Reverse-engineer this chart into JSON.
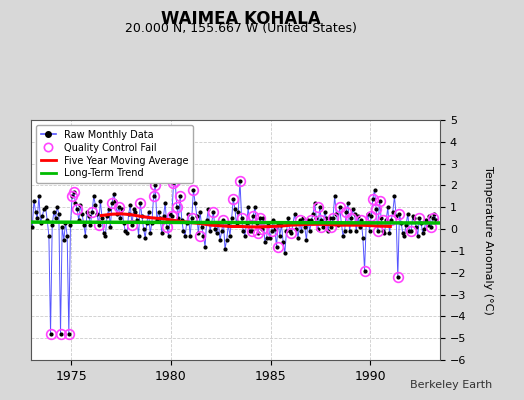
{
  "title": "WAIMEA KOHALA",
  "subtitle": "20.000 N, 155.667 W (United States)",
  "ylabel": "Temperature Anomaly (°C)",
  "credit": "Berkeley Earth",
  "ylim": [
    -6,
    5
  ],
  "xlim": [
    1973.0,
    1993.5
  ],
  "yticks": [
    -6,
    -5,
    -4,
    -3,
    -2,
    -1,
    0,
    1,
    2,
    3,
    4,
    5
  ],
  "xticks": [
    1975,
    1980,
    1985,
    1990
  ],
  "fig_bg_color": "#d8d8d8",
  "plot_bg_color": "#ffffff",
  "grid_color": "#cccccc",
  "raw_color": "#5555ff",
  "dot_color": "#000000",
  "qc_color": "#ff44ff",
  "ma_color": "#ff0000",
  "trend_color": "#00bb00",
  "raw_lw": 0.7,
  "ma_lw": 2.2,
  "trend_lw": 2.5,
  "raw_data_x": [
    1973.042,
    1973.125,
    1973.208,
    1973.292,
    1973.375,
    1973.458,
    1973.542,
    1973.625,
    1973.708,
    1973.792,
    1973.875,
    1973.958,
    1974.042,
    1974.125,
    1974.208,
    1974.292,
    1974.375,
    1974.458,
    1974.542,
    1974.625,
    1974.708,
    1974.792,
    1974.875,
    1974.958,
    1975.042,
    1975.125,
    1975.208,
    1975.292,
    1975.375,
    1975.458,
    1975.542,
    1975.625,
    1975.708,
    1975.792,
    1975.875,
    1975.958,
    1976.042,
    1976.125,
    1976.208,
    1976.292,
    1976.375,
    1976.458,
    1976.542,
    1976.625,
    1976.708,
    1976.792,
    1976.875,
    1976.958,
    1977.042,
    1977.125,
    1977.208,
    1977.292,
    1977.375,
    1977.458,
    1977.542,
    1977.625,
    1977.708,
    1977.792,
    1977.875,
    1977.958,
    1978.042,
    1978.125,
    1978.208,
    1978.292,
    1978.375,
    1978.458,
    1978.542,
    1978.625,
    1978.708,
    1978.792,
    1978.875,
    1978.958,
    1979.042,
    1979.125,
    1979.208,
    1979.292,
    1979.375,
    1979.458,
    1979.542,
    1979.625,
    1979.708,
    1979.792,
    1979.875,
    1979.958,
    1980.042,
    1980.125,
    1980.208,
    1980.292,
    1980.375,
    1980.458,
    1980.542,
    1980.625,
    1980.708,
    1980.792,
    1980.875,
    1980.958,
    1981.042,
    1981.125,
    1981.208,
    1981.292,
    1981.375,
    1981.458,
    1981.542,
    1981.625,
    1981.708,
    1981.792,
    1981.875,
    1981.958,
    1982.042,
    1982.125,
    1982.208,
    1982.292,
    1982.375,
    1982.458,
    1982.542,
    1982.625,
    1982.708,
    1982.792,
    1982.875,
    1982.958,
    1983.042,
    1983.125,
    1983.208,
    1983.292,
    1983.375,
    1983.458,
    1983.542,
    1983.625,
    1983.708,
    1983.792,
    1983.875,
    1983.958,
    1984.042,
    1984.125,
    1984.208,
    1984.292,
    1984.375,
    1984.458,
    1984.542,
    1984.625,
    1984.708,
    1984.792,
    1984.875,
    1984.958,
    1985.042,
    1985.125,
    1985.208,
    1985.292,
    1985.375,
    1985.458,
    1985.542,
    1985.625,
    1985.708,
    1985.792,
    1985.875,
    1985.958,
    1986.042,
    1986.125,
    1986.208,
    1986.292,
    1986.375,
    1986.458,
    1986.542,
    1986.625,
    1986.708,
    1986.792,
    1986.875,
    1986.958,
    1987.042,
    1987.125,
    1987.208,
    1987.292,
    1987.375,
    1987.458,
    1987.542,
    1987.625,
    1987.708,
    1987.792,
    1987.875,
    1987.958,
    1988.042,
    1988.125,
    1988.208,
    1988.292,
    1988.375,
    1988.458,
    1988.542,
    1988.625,
    1988.708,
    1988.792,
    1988.875,
    1988.958,
    1989.042,
    1989.125,
    1989.208,
    1989.292,
    1989.375,
    1989.458,
    1989.542,
    1989.625,
    1989.708,
    1989.792,
    1989.875,
    1989.958,
    1990.042,
    1990.125,
    1990.208,
    1990.292,
    1990.375,
    1990.458,
    1990.542,
    1990.625,
    1990.708,
    1990.792,
    1990.875,
    1990.958,
    1991.042,
    1991.125,
    1991.208,
    1991.292,
    1991.375,
    1991.458,
    1991.542,
    1991.625,
    1991.708,
    1991.792,
    1991.875,
    1991.958,
    1992.042,
    1992.125,
    1992.208,
    1992.292,
    1992.375,
    1992.458,
    1992.542,
    1992.625,
    1992.708,
    1992.792,
    1992.875,
    1992.958,
    1993.042,
    1993.125,
    1993.208,
    1993.292
  ],
  "raw_data_y": [
    0.1,
    1.3,
    0.8,
    0.5,
    1.5,
    0.3,
    0.6,
    0.9,
    1.0,
    0.4,
    -0.3,
    -4.8,
    0.2,
    0.8,
    0.5,
    1.0,
    0.7,
    -4.8,
    0.1,
    -0.5,
    0.3,
    -0.3,
    -4.8,
    0.2,
    1.5,
    1.7,
    1.2,
    0.9,
    0.4,
    1.1,
    0.7,
    0.2,
    -0.3,
    0.8,
    0.6,
    0.2,
    0.8,
    1.5,
    1.1,
    0.7,
    0.2,
    1.3,
    0.5,
    -0.2,
    -0.3,
    0.6,
    0.9,
    0.1,
    1.2,
    1.6,
    1.3,
    0.7,
    1.0,
    0.5,
    0.9,
    0.3,
    -0.1,
    -0.2,
    0.7,
    1.1,
    0.2,
    0.9,
    0.8,
    0.4,
    -0.3,
    1.2,
    0.6,
    0.0,
    -0.4,
    0.3,
    0.8,
    -0.2,
    0.3,
    1.5,
    2.0,
    0.4,
    0.8,
    0.5,
    -0.2,
    0.6,
    1.2,
    0.1,
    -0.3,
    0.7,
    0.6,
    2.1,
    2.2,
    1.0,
    0.5,
    1.5,
    0.4,
    -0.1,
    -0.3,
    0.3,
    0.7,
    -0.3,
    0.5,
    1.8,
    1.2,
    0.6,
    -0.2,
    0.8,
    0.1,
    -0.3,
    -0.8,
    0.4,
    0.9,
    -0.1,
    0.3,
    0.8,
    0.0,
    -0.2,
    0.3,
    -0.5,
    -0.1,
    0.4,
    -0.9,
    -0.5,
    0.2,
    -0.3,
    0.5,
    1.4,
    0.9,
    0.2,
    0.8,
    2.2,
    0.5,
    -0.1,
    -0.3,
    0.3,
    1.0,
    -0.1,
    -0.1,
    0.6,
    1.0,
    0.3,
    -0.2,
    0.5,
    0.0,
    0.5,
    -0.6,
    -0.4,
    0.3,
    -0.4,
    -0.1,
    0.4,
    0.0,
    -0.8,
    0.3,
    -0.3,
    0.2,
    -0.6,
    -1.1,
    -0.1,
    0.5,
    -0.1,
    -0.2,
    0.3,
    0.7,
    0.0,
    -0.4,
    0.4,
    -0.1,
    0.5,
    0.1,
    -0.5,
    0.4,
    -0.1,
    0.4,
    0.7,
    1.2,
    0.5,
    0.0,
    1.0,
    0.4,
    0.1,
    0.8,
    0.5,
    -0.1,
    0.5,
    0.1,
    0.5,
    1.5,
    0.7,
    0.2,
    1.0,
    0.3,
    -0.3,
    -0.1,
    0.8,
    1.2,
    -0.1,
    0.5,
    0.9,
    0.7,
    -0.1,
    0.6,
    0.1,
    0.4,
    -0.4,
    -1.9,
    0.3,
    0.7,
    -0.1,
    0.6,
    1.4,
    1.8,
    0.9,
    -0.1,
    1.3,
    0.5,
    -0.1,
    -0.2,
    0.4,
    1.0,
    -0.2,
    0.4,
    0.8,
    1.5,
    0.6,
    -2.2,
    0.7,
    0.3,
    -0.2,
    -0.3,
    0.2,
    0.7,
    -0.1,
    -0.1,
    0.6,
    0.5,
    0.1,
    -0.3,
    0.5,
    0.3,
    -0.2,
    0.0,
    0.4,
    0.2,
    0.6,
    0.1,
    0.5,
    0.7,
    0.4
  ],
  "qc_fail_x": [
    1973.958,
    1974.458,
    1974.875,
    1975.042,
    1975.125,
    1975.292,
    1976.042,
    1976.375,
    1977.042,
    1977.375,
    1978.042,
    1978.458,
    1979.125,
    1979.208,
    1979.792,
    1980.042,
    1980.125,
    1980.208,
    1980.292,
    1980.458,
    1981.042,
    1981.125,
    1981.458,
    1982.125,
    1982.625,
    1983.125,
    1983.458,
    1983.542,
    1984.042,
    1984.125,
    1984.375,
    1984.458,
    1984.542,
    1985.042,
    1985.375,
    1986.042,
    1986.458,
    1987.042,
    1987.375,
    1987.458,
    1987.542,
    1988.042,
    1988.125,
    1988.458,
    1988.792,
    1989.042,
    1989.542,
    1989.708,
    1990.042,
    1990.125,
    1990.292,
    1990.375,
    1990.458,
    1990.625,
    1991.042,
    1991.375,
    1991.458,
    1992.042,
    1992.458,
    1993.042,
    1993.125
  ],
  "qc_fail_y": [
    -4.8,
    -4.8,
    -4.8,
    1.5,
    1.7,
    0.9,
    0.8,
    0.2,
    1.2,
    1.0,
    0.2,
    1.2,
    1.5,
    2.0,
    0.1,
    0.6,
    2.1,
    2.2,
    1.0,
    1.5,
    0.5,
    1.8,
    -0.3,
    0.8,
    0.4,
    1.4,
    2.2,
    0.5,
    -0.1,
    0.6,
    -0.2,
    0.5,
    0.0,
    -0.1,
    -0.8,
    -0.2,
    0.4,
    0.4,
    1.0,
    0.4,
    0.1,
    0.1,
    0.5,
    1.0,
    0.8,
    0.5,
    0.4,
    -1.9,
    0.6,
    1.4,
    0.9,
    -0.1,
    1.3,
    0.4,
    0.4,
    -2.2,
    0.7,
    -0.1,
    0.5,
    0.1,
    0.5
  ],
  "ma_x": [
    1976.5,
    1977.0,
    1977.5,
    1978.0,
    1978.5,
    1979.0,
    1979.5,
    1980.0,
    1980.5,
    1981.0,
    1981.5,
    1982.0,
    1982.5,
    1983.0,
    1983.5,
    1984.0,
    1984.5,
    1985.0,
    1985.5,
    1986.0,
    1986.5,
    1987.0,
    1987.5,
    1988.0,
    1988.5,
    1989.0,
    1989.5,
    1990.0,
    1990.5,
    1991.0
  ],
  "ma_y": [
    0.62,
    0.68,
    0.7,
    0.66,
    0.58,
    0.52,
    0.48,
    0.42,
    0.35,
    0.3,
    0.25,
    0.18,
    0.15,
    0.12,
    0.12,
    0.1,
    0.1,
    0.12,
    0.14,
    0.18,
    0.2,
    0.22,
    0.22,
    0.2,
    0.18,
    0.18,
    0.18,
    0.16,
    0.14,
    0.12
  ],
  "trend_x": [
    1973.0,
    1993.5
  ],
  "trend_y": [
    0.32,
    0.28
  ]
}
